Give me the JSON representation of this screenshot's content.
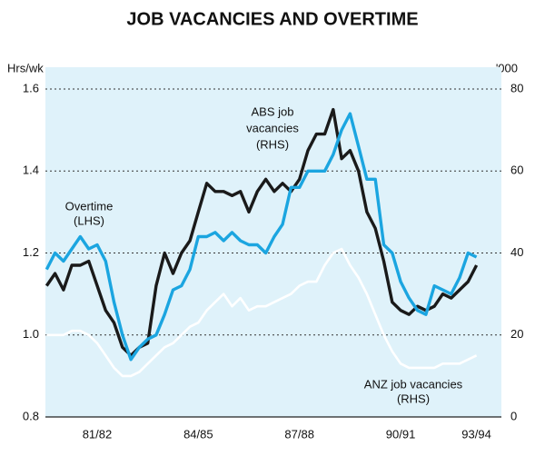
{
  "chart_data": {
    "type": "line",
    "title": "JOB VACANCIES AND OVERTIME",
    "y_label": "Hrs/wk",
    "y2_label": "'000",
    "categories": [
      null,
      null,
      null,
      null,
      null,
      null,
      "81/82",
      null,
      null,
      null,
      null,
      null,
      null,
      null,
      null,
      null,
      null,
      null,
      "84/85",
      null,
      null,
      null,
      null,
      null,
      null,
      null,
      null,
      null,
      null,
      null,
      "87/88",
      null,
      null,
      null,
      null,
      null,
      null,
      null,
      null,
      null,
      null,
      null,
      "90/91",
      null,
      null,
      null,
      null,
      null,
      null,
      null,
      null,
      "93/94"
    ],
    "series": [
      {
        "color": "#1ba5e0",
        "axis": "y",
        "values": [
          1.16,
          1.2,
          1.18,
          1.21,
          1.24,
          1.21,
          1.22,
          1.18,
          1.08,
          1.0,
          0.94,
          0.97,
          0.99,
          1.0,
          1.05,
          1.11,
          1.12,
          1.16,
          1.24,
          1.24,
          1.25,
          1.23,
          1.25,
          1.23,
          1.22,
          1.22,
          1.2,
          1.24,
          1.27,
          1.36,
          1.36,
          1.4,
          1.4,
          1.4,
          1.44,
          1.5,
          1.54,
          1.46,
          1.38,
          1.38,
          1.22,
          1.2,
          1.13,
          1.09,
          1.06,
          1.05,
          1.12,
          1.11,
          1.1,
          1.14,
          1.2,
          1.19
        ]
      },
      {
        "color": "#1a1a1a",
        "axis": "y2",
        "values": [
          32,
          35,
          31,
          37,
          37,
          38,
          32,
          26,
          23,
          17,
          15,
          17,
          18,
          32,
          40,
          35,
          40,
          43,
          50,
          57,
          55,
          55,
          54,
          55,
          50,
          55,
          58,
          55,
          57,
          55,
          58,
          65,
          69,
          69,
          75,
          63,
          65,
          60,
          50,
          46,
          38,
          28,
          26,
          25,
          27,
          26,
          27,
          30,
          29,
          31,
          33,
          37
        ]
      },
      {
        "color": "#ffffff",
        "axis": "y2",
        "values": [
          20,
          20,
          20,
          21,
          21,
          20,
          18,
          15,
          12,
          10,
          10,
          11,
          13,
          15,
          17,
          18,
          20,
          22,
          23,
          26,
          28,
          30,
          27,
          29,
          26,
          27,
          27,
          28,
          29,
          30,
          32,
          33,
          33,
          37,
          40,
          41,
          37,
          34,
          30,
          25,
          20,
          16,
          13,
          12,
          12,
          12,
          12,
          13,
          13,
          13,
          14,
          15
        ]
      }
    ],
    "annotations": [
      {
        "lines": [
          "Overtime",
          "(LHS)"
        ]
      },
      {
        "lines": [
          "ABS job",
          "vacancies",
          "(RHS)"
        ]
      },
      {
        "lines": [
          "ANZ  job vacancies",
          "(RHS)"
        ]
      }
    ],
    "ylim": [
      0.8,
      1.6
    ],
    "yticks": [
      {
        "value": 0.8,
        "label": "0.8"
      },
      {
        "value": 1.0,
        "label": "1.0"
      },
      {
        "value": 1.2,
        "label": "1.2"
      },
      {
        "value": 1.4,
        "label": "1.4"
      },
      {
        "value": 1.6,
        "label": "1.6"
      }
    ],
    "y2lim": [
      0,
      80
    ],
    "y2ticks": [
      0,
      20,
      40,
      60,
      80
    ],
    "grid": true,
    "background": "#dff2fa"
  }
}
